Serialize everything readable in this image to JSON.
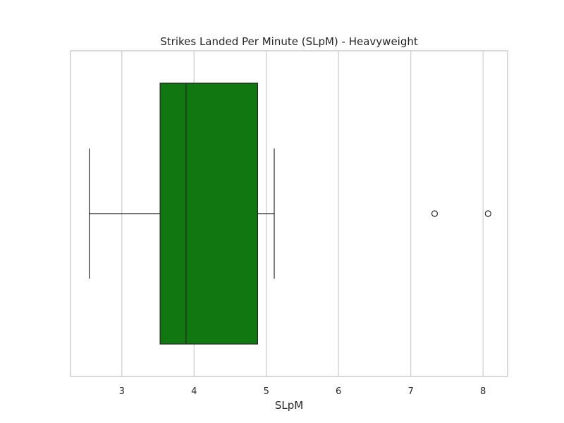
{
  "chart_data": {
    "type": "box",
    "orientation": "horizontal",
    "title": "Strikes Landed Per Minute (SLpM) - Heavyweight",
    "xlabel": "SLpM",
    "ylabel": "",
    "xlim": [
      2.29,
      8.34
    ],
    "xticks": [
      3,
      4,
      5,
      6,
      7,
      8
    ],
    "xtick_labels": [
      "3",
      "4",
      "5",
      "6",
      "7",
      "8"
    ],
    "grid": "vertical",
    "box": {
      "whisker_low": 2.55,
      "q1": 3.53,
      "median": 3.89,
      "q3": 4.88,
      "whisker_high": 5.11,
      "outliers": [
        7.33,
        8.07
      ]
    },
    "colors": {
      "box_fill": "#117711",
      "box_edge": "#262626",
      "grid": "#cccccc",
      "spine": "#cccccc",
      "text": "#262626"
    }
  }
}
